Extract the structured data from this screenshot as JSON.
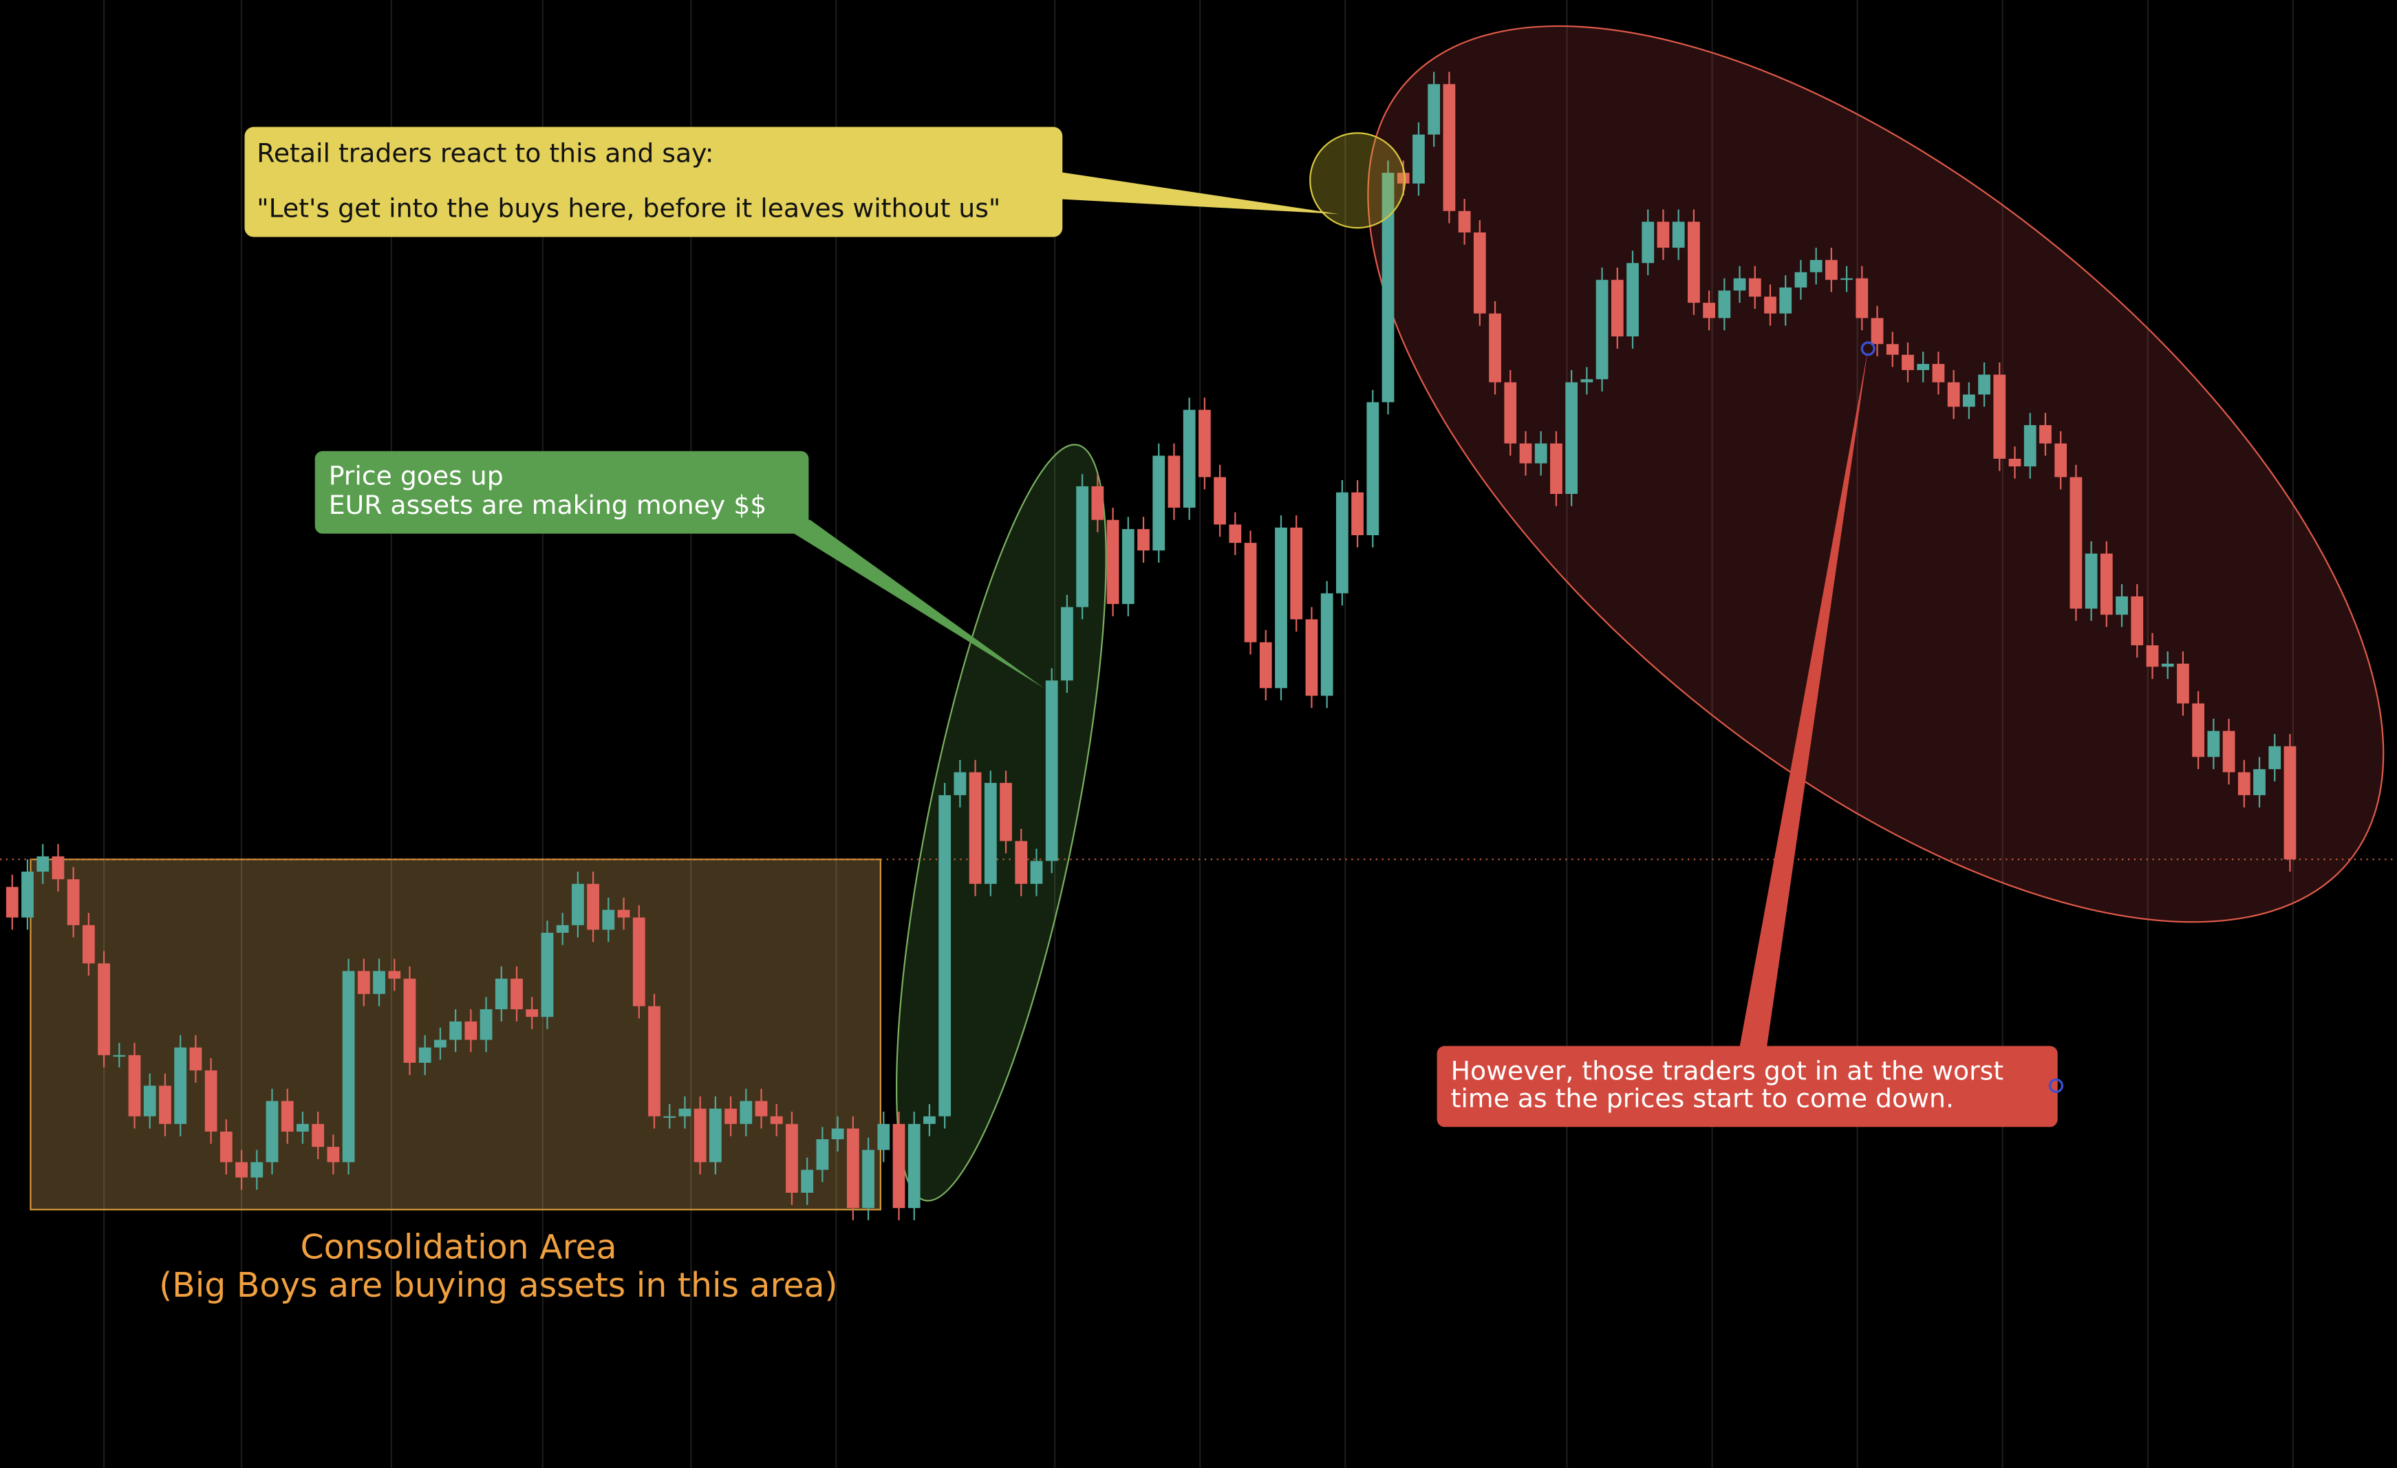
{
  "chart_data": {
    "type": "candlestick",
    "ylim": [
      0,
      960
    ],
    "colors": {
      "up": "#4fa89b",
      "down": "#e0605a"
    },
    "open": [
      380,
      360,
      390,
      400,
      385,
      355,
      330,
      270,
      270,
      230,
      250,
      225,
      275,
      260,
      220,
      200,
      190,
      200,
      240,
      220,
      225,
      210,
      200,
      325,
      310,
      325,
      320,
      265,
      275,
      280,
      292,
      280,
      300,
      320,
      300,
      295,
      350,
      355,
      382,
      352,
      365,
      360,
      302,
      230,
      230,
      235,
      200,
      235,
      225,
      240,
      230,
      225,
      180,
      195,
      215,
      222,
      170,
      208,
      225,
      170,
      225,
      230,
      440,
      455,
      382,
      448,
      410,
      382,
      397,
      515,
      563,
      642,
      620,
      565,
      614,
      600,
      662,
      628,
      692,
      648,
      617,
      605,
      540,
      510,
      615,
      555,
      505,
      572,
      638,
      610,
      697,
      847,
      840,
      872,
      905,
      822,
      808,
      755,
      710,
      670,
      657,
      670,
      637,
      710,
      712,
      777,
      740,
      788,
      815,
      798,
      815,
      762,
      752,
      770,
      778,
      766,
      755,
      772,
      782,
      790,
      777,
      778,
      752,
      735,
      728,
      718,
      722,
      710,
      694,
      702,
      715,
      660,
      655,
      682,
      670,
      648,
      562,
      598,
      558,
      570,
      538,
      524,
      526,
      500,
      465,
      482,
      455,
      440,
      457,
      472
    ],
    "high": [
      388,
      398,
      408,
      408,
      393,
      363,
      338,
      278,
      278,
      258,
      258,
      283,
      283,
      268,
      228,
      208,
      208,
      248,
      248,
      233,
      233,
      218,
      333,
      333,
      333,
      333,
      328,
      283,
      288,
      300,
      300,
      308,
      328,
      328,
      308,
      358,
      363,
      390,
      390,
      373,
      373,
      368,
      310,
      238,
      243,
      243,
      243,
      243,
      248,
      248,
      238,
      233,
      203,
      223,
      230,
      230,
      216,
      233,
      233,
      233,
      238,
      448,
      463,
      463,
      456,
      456,
      418,
      405,
      523,
      571,
      650,
      650,
      628,
      622,
      622,
      670,
      670,
      700,
      700,
      656,
      625,
      613,
      548,
      623,
      623,
      563,
      580,
      646,
      646,
      705,
      855,
      855,
      880,
      913,
      913,
      830,
      816,
      763,
      718,
      678,
      678,
      678,
      718,
      720,
      785,
      785,
      796,
      823,
      823,
      823,
      823,
      770,
      778,
      786,
      786,
      774,
      780,
      790,
      798,
      798,
      786,
      786,
      760,
      743,
      736,
      730,
      730,
      718,
      710,
      723,
      723,
      668,
      690,
      690,
      678,
      656,
      606,
      606,
      578,
      578,
      546,
      534,
      534,
      508,
      490,
      490,
      463,
      465,
      480,
      480
    ],
    "low": [
      352,
      352,
      382,
      377,
      347,
      322,
      262,
      262,
      222,
      222,
      217,
      217,
      252,
      212,
      192,
      182,
      182,
      192,
      212,
      212,
      202,
      192,
      192,
      302,
      302,
      312,
      257,
      257,
      267,
      272,
      272,
      272,
      292,
      292,
      287,
      287,
      342,
      347,
      344,
      344,
      352,
      294,
      222,
      222,
      222,
      192,
      192,
      217,
      217,
      222,
      217,
      172,
      172,
      187,
      207,
      162,
      162,
      200,
      162,
      162,
      217,
      222,
      432,
      374,
      374,
      402,
      374,
      374,
      389,
      507,
      555,
      612,
      557,
      557,
      592,
      592,
      620,
      620,
      640,
      609,
      597,
      532,
      502,
      502,
      547,
      497,
      497,
      564,
      602,
      602,
      689,
      832,
      832,
      864,
      814,
      800,
      747,
      702,
      662,
      649,
      649,
      629,
      629,
      702,
      704,
      732,
      732,
      780,
      790,
      790,
      754,
      744,
      744,
      762,
      758,
      747,
      747,
      764,
      774,
      769,
      769,
      744,
      727,
      720,
      710,
      710,
      702,
      686,
      686,
      694,
      652,
      647,
      647,
      662,
      640,
      554,
      554,
      550,
      550,
      530,
      516,
      516,
      492,
      457,
      457,
      447,
      432,
      432,
      449,
      390
    ],
    "close": [
      360,
      390,
      400,
      385,
      355,
      330,
      270,
      270,
      230,
      250,
      225,
      275,
      260,
      220,
      200,
      190,
      200,
      240,
      220,
      225,
      210,
      200,
      325,
      310,
      325,
      320,
      265,
      275,
      280,
      292,
      280,
      300,
      320,
      300,
      295,
      350,
      355,
      382,
      352,
      365,
      360,
      302,
      230,
      230,
      235,
      200,
      235,
      225,
      240,
      230,
      225,
      180,
      195,
      215,
      222,
      170,
      208,
      225,
      170,
      225,
      230,
      440,
      455,
      382,
      448,
      410,
      382,
      397,
      515,
      563,
      642,
      620,
      565,
      614,
      600,
      662,
      628,
      692,
      648,
      617,
      605,
      540,
      510,
      615,
      555,
      505,
      572,
      638,
      610,
      697,
      847,
      840,
      872,
      905,
      822,
      808,
      755,
      710,
      670,
      657,
      670,
      637,
      710,
      712,
      777,
      740,
      788,
      815,
      798,
      815,
      762,
      752,
      770,
      778,
      766,
      755,
      772,
      782,
      790,
      777,
      778,
      752,
      735,
      728,
      718,
      722,
      710,
      694,
      702,
      715,
      660,
      655,
      682,
      670,
      648,
      562,
      598,
      558,
      570,
      538,
      524,
      526,
      500,
      465,
      482,
      455,
      440,
      457,
      472,
      398
    ],
    "annotations": {
      "consolidation": [
        "Consolidation Area",
        "(Big Boys are buying assets in this area)"
      ],
      "retail": [
        "Retail traders react to this and say:",
        "\"Let's get into the buys here, before it leaves without us\""
      ],
      "price_up": [
        "Price goes up",
        "EUR assets are making money $$"
      ],
      "however": [
        "However, those traders got in at the worst",
        "time as the prices start to come down."
      ]
    }
  }
}
